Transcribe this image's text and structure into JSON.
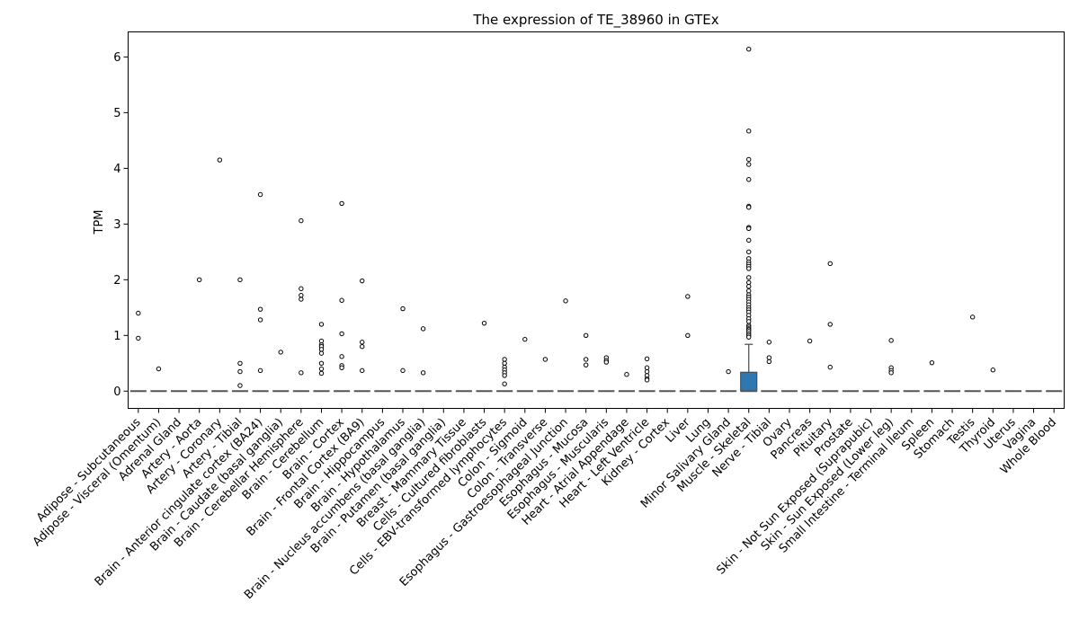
{
  "chart_data": {
    "type": "box",
    "title": "The expression of TE_38960 in GTEx",
    "xlabel": "",
    "ylabel": "TPM",
    "ylim": [
      -0.31,
      6.45
    ],
    "yticks": [
      0,
      1,
      2,
      3,
      4,
      5,
      6
    ],
    "grid": false,
    "colors": {
      "box": "#2f77b0",
      "median": "#555555",
      "outlier_stroke": "#000000"
    },
    "categories": [
      "Adipose - Subcutaneous",
      "Adipose - Visceral (Omentum)",
      "Adrenal Gland",
      "Artery - Aorta",
      "Artery - Coronary",
      "Artery - Tibial",
      "Brain - Anterior cingulate cortex (BA24)",
      "Brain - Caudate (basal ganglia)",
      "Brain - Cerebellar Hemisphere",
      "Brain - Cerebellum",
      "Brain - Cortex",
      "Brain - Frontal Cortex (BA9)",
      "Brain - Hippocampus",
      "Brain - Hypothalamus",
      "Brain - Nucleus accumbens (basal ganglia)",
      "Brain - Putamen (basal ganglia)",
      "Breast - Mammary Tissue",
      "Cells - Cultured fibroblasts",
      "Cells - EBV-transformed lymphocytes",
      "Colon - Sigmoid",
      "Colon - Transverse",
      "Esophagus - Gastroesophageal Junction",
      "Esophagus - Mucosa",
      "Esophagus - Muscularis",
      "Heart - Atrial Appendage",
      "Heart - Left Ventricle",
      "Kidney - Cortex",
      "Liver",
      "Lung",
      "Minor Salivary Gland",
      "Muscle - Skeletal",
      "Nerve - Tibial",
      "Ovary",
      "Pancreas",
      "Pituitary",
      "Prostate",
      "Skin - Not Sun Exposed (Suprapubic)",
      "Skin - Sun Exposed (Lower leg)",
      "Small Intestine - Terminal Ileum",
      "Spleen",
      "Stomach",
      "Testis",
      "Thyroid",
      "Uterus",
      "Vagina",
      "Whole Blood"
    ],
    "boxes": [
      {
        "q1": 0,
        "median": 0,
        "q3": 0,
        "whisker_low": 0,
        "whisker_high": 0,
        "outliers": [
          1.4,
          0.95
        ]
      },
      {
        "q1": 0,
        "median": 0,
        "q3": 0,
        "whisker_low": 0,
        "whisker_high": 0,
        "outliers": [
          0.4
        ]
      },
      {
        "q1": 0,
        "median": 0,
        "q3": 0,
        "whisker_low": 0,
        "whisker_high": 0,
        "outliers": []
      },
      {
        "q1": 0,
        "median": 0,
        "q3": 0,
        "whisker_low": 0,
        "whisker_high": 0,
        "outliers": [
          2.0
        ]
      },
      {
        "q1": 0,
        "median": 0,
        "q3": 0,
        "whisker_low": 0,
        "whisker_high": 0,
        "outliers": [
          4.15
        ]
      },
      {
        "q1": 0,
        "median": 0,
        "q3": 0,
        "whisker_low": 0,
        "whisker_high": 0,
        "outliers": [
          2.0,
          0.5,
          0.35,
          0.1
        ]
      },
      {
        "q1": 0,
        "median": 0,
        "q3": 0,
        "whisker_low": 0,
        "whisker_high": 0,
        "outliers": [
          3.53,
          1.47,
          1.28,
          0.37
        ]
      },
      {
        "q1": 0,
        "median": 0,
        "q3": 0,
        "whisker_low": 0,
        "whisker_high": 0,
        "outliers": [
          0.7
        ]
      },
      {
        "q1": 0,
        "median": 0,
        "q3": 0,
        "whisker_low": 0,
        "whisker_high": 0,
        "outliers": [
          3.06,
          1.84,
          1.72,
          1.65,
          0.33
        ]
      },
      {
        "q1": 0,
        "median": 0,
        "q3": 0,
        "whisker_low": 0,
        "whisker_high": 0,
        "outliers": [
          1.2,
          0.9,
          0.83,
          0.8,
          0.75,
          0.68,
          0.5,
          0.4,
          0.32
        ]
      },
      {
        "q1": 0,
        "median": 0,
        "q3": 0,
        "whisker_low": 0,
        "whisker_high": 0,
        "outliers": [
          3.37,
          1.63,
          1.03,
          0.62,
          0.46,
          0.42
        ]
      },
      {
        "q1": 0,
        "median": 0,
        "q3": 0,
        "whisker_low": 0,
        "whisker_high": 0,
        "outliers": [
          1.98,
          0.88,
          0.8,
          0.37
        ]
      },
      {
        "q1": 0,
        "median": 0,
        "q3": 0,
        "whisker_low": 0,
        "whisker_high": 0,
        "outliers": []
      },
      {
        "q1": 0,
        "median": 0,
        "q3": 0,
        "whisker_low": 0,
        "whisker_high": 0,
        "outliers": [
          1.48,
          0.37
        ]
      },
      {
        "q1": 0,
        "median": 0,
        "q3": 0,
        "whisker_low": 0,
        "whisker_high": 0,
        "outliers": [
          1.12,
          0.33
        ]
      },
      {
        "q1": 0,
        "median": 0,
        "q3": 0,
        "whisker_low": 0,
        "whisker_high": 0,
        "outliers": []
      },
      {
        "q1": 0,
        "median": 0,
        "q3": 0,
        "whisker_low": 0,
        "whisker_high": 0,
        "outliers": []
      },
      {
        "q1": 0,
        "median": 0,
        "q3": 0,
        "whisker_low": 0,
        "whisker_high": 0,
        "outliers": [
          1.22
        ]
      },
      {
        "q1": 0,
        "median": 0,
        "q3": 0,
        "whisker_low": 0,
        "whisker_high": 0,
        "outliers": [
          0.57,
          0.5,
          0.43,
          0.38,
          0.33,
          0.28,
          0.13
        ]
      },
      {
        "q1": 0,
        "median": 0,
        "q3": 0,
        "whisker_low": 0,
        "whisker_high": 0,
        "outliers": [
          0.93
        ]
      },
      {
        "q1": 0,
        "median": 0,
        "q3": 0,
        "whisker_low": 0,
        "whisker_high": 0,
        "outliers": [
          0.57
        ]
      },
      {
        "q1": 0,
        "median": 0,
        "q3": 0,
        "whisker_low": 0,
        "whisker_high": 0,
        "outliers": [
          1.62
        ]
      },
      {
        "q1": 0,
        "median": 0,
        "q3": 0,
        "whisker_low": 0,
        "whisker_high": 0,
        "outliers": [
          1.0,
          0.57,
          0.47
        ]
      },
      {
        "q1": 0,
        "median": 0,
        "q3": 0,
        "whisker_low": 0,
        "whisker_high": 0,
        "outliers": [
          0.6,
          0.55,
          0.52
        ]
      },
      {
        "q1": 0,
        "median": 0,
        "q3": 0,
        "whisker_low": 0,
        "whisker_high": 0,
        "outliers": [
          0.3
        ]
      },
      {
        "q1": 0,
        "median": 0,
        "q3": 0,
        "whisker_low": 0,
        "whisker_high": 0,
        "outliers": [
          0.58,
          0.42,
          0.35,
          0.28,
          0.22,
          0.2
        ]
      },
      {
        "q1": 0,
        "median": 0,
        "q3": 0,
        "whisker_low": 0,
        "whisker_high": 0,
        "outliers": []
      },
      {
        "q1": 0,
        "median": 0,
        "q3": 0,
        "whisker_low": 0,
        "whisker_high": 0,
        "outliers": [
          1.7,
          1.0
        ]
      },
      {
        "q1": 0,
        "median": 0,
        "q3": 0,
        "whisker_low": 0,
        "whisker_high": 0,
        "outliers": []
      },
      {
        "q1": 0,
        "median": 0,
        "q3": 0,
        "whisker_low": 0,
        "whisker_high": 0,
        "outliers": [
          0.35
        ]
      },
      {
        "q1": 0,
        "median": 0,
        "q3": 0.34,
        "whisker_low": 0,
        "whisker_high": 0.84,
        "outliers": [
          6.14,
          4.67,
          4.16,
          4.07,
          3.8,
          3.32,
          3.3,
          2.94,
          2.92,
          2.71,
          2.5,
          2.38,
          2.32,
          2.28,
          2.24,
          2.2,
          2.04,
          1.95,
          1.88,
          1.8,
          1.73,
          1.69,
          1.65,
          1.6,
          1.55,
          1.5,
          1.46,
          1.42,
          1.36,
          1.3,
          1.25,
          1.18,
          1.15,
          1.12,
          1.1,
          1.07,
          1.03,
          1.0,
          0.97
        ]
      },
      {
        "q1": 0,
        "median": 0,
        "q3": 0,
        "whisker_low": 0,
        "whisker_high": 0,
        "outliers": [
          0.88,
          0.6,
          0.53
        ]
      },
      {
        "q1": 0,
        "median": 0,
        "q3": 0,
        "whisker_low": 0,
        "whisker_high": 0,
        "outliers": []
      },
      {
        "q1": 0,
        "median": 0,
        "q3": 0,
        "whisker_low": 0,
        "whisker_high": 0,
        "outliers": [
          0.9
        ]
      },
      {
        "q1": 0,
        "median": 0,
        "q3": 0,
        "whisker_low": 0,
        "whisker_high": 0,
        "outliers": [
          2.29,
          1.2,
          0.43
        ]
      },
      {
        "q1": 0,
        "median": 0,
        "q3": 0,
        "whisker_low": 0,
        "whisker_high": 0,
        "outliers": []
      },
      {
        "q1": 0,
        "median": 0,
        "q3": 0,
        "whisker_low": 0,
        "whisker_high": 0,
        "outliers": []
      },
      {
        "q1": 0,
        "median": 0,
        "q3": 0,
        "whisker_low": 0,
        "whisker_high": 0,
        "outliers": [
          0.91,
          0.42,
          0.37,
          0.33
        ]
      },
      {
        "q1": 0,
        "median": 0,
        "q3": 0,
        "whisker_low": 0,
        "whisker_high": 0,
        "outliers": []
      },
      {
        "q1": 0,
        "median": 0,
        "q3": 0,
        "whisker_low": 0,
        "whisker_high": 0,
        "outliers": [
          0.51
        ]
      },
      {
        "q1": 0,
        "median": 0,
        "q3": 0,
        "whisker_low": 0,
        "whisker_high": 0,
        "outliers": []
      },
      {
        "q1": 0,
        "median": 0,
        "q3": 0,
        "whisker_low": 0,
        "whisker_high": 0,
        "outliers": [
          1.33
        ]
      },
      {
        "q1": 0,
        "median": 0,
        "q3": 0,
        "whisker_low": 0,
        "whisker_high": 0,
        "outliers": [
          0.38
        ]
      },
      {
        "q1": 0,
        "median": 0,
        "q3": 0,
        "whisker_low": 0,
        "whisker_high": 0,
        "outliers": []
      },
      {
        "q1": 0,
        "median": 0,
        "q3": 0,
        "whisker_low": 0,
        "whisker_high": 0,
        "outliers": []
      },
      {
        "q1": 0,
        "median": 0,
        "q3": 0,
        "whisker_low": 0,
        "whisker_high": 0,
        "outliers": []
      }
    ]
  }
}
